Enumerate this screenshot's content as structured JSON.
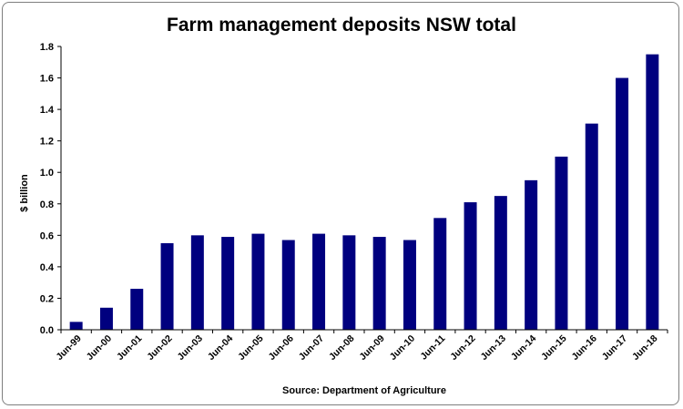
{
  "chart_data": {
    "type": "bar",
    "title": "Farm management deposits NSW total",
    "xlabel": "Source: Department of Agriculture",
    "ylabel": "$ billion",
    "ylim": [
      0,
      1.8
    ],
    "yticks": [
      "0.0",
      "0.2",
      "0.4",
      "0.6",
      "0.8",
      "1.0",
      "1.2",
      "1.4",
      "1.6",
      "1.8"
    ],
    "grid": false,
    "legend": "none",
    "bar_color": "#00007f",
    "categories": [
      "Jun-99",
      "Jun-00",
      "Jun-01",
      "Jun-02",
      "Jun-03",
      "Jun-04",
      "Jun-05",
      "Jun-06",
      "Jun-07",
      "Jun-08",
      "Jun-09",
      "Jun-10",
      "Jun-11",
      "Jun-12",
      "Jun-13",
      "Jun-14",
      "Jun-15",
      "Jun-16",
      "Jun-17",
      "Jun-18"
    ],
    "values": [
      0.05,
      0.14,
      0.26,
      0.55,
      0.6,
      0.59,
      0.61,
      0.57,
      0.61,
      0.6,
      0.59,
      0.57,
      0.71,
      0.81,
      0.85,
      0.95,
      1.1,
      1.31,
      1.6,
      1.75
    ]
  }
}
